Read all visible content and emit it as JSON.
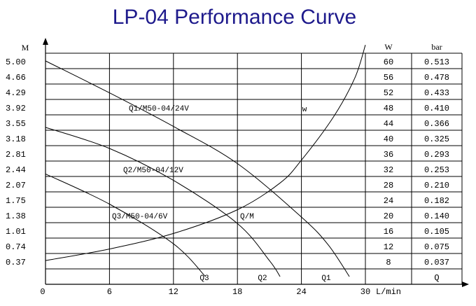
{
  "chart_data": {
    "type": "line",
    "title": "LP-04 Performance Curve",
    "ylabel": "M",
    "xlabel": "L/min",
    "x_ticks": [
      "0",
      "6",
      "12",
      "18",
      "24",
      "30"
    ],
    "y_ticks": [
      "5.00",
      "4.66",
      "4.29",
      "3.92",
      "3.55",
      "3.18",
      "2.81",
      "2.44",
      "2.07",
      "1.75",
      "1.38",
      "1.01",
      "0.74",
      "0.37"
    ],
    "xlim": [
      0,
      30
    ],
    "ylim": [
      0,
      5.37
    ],
    "grid": true,
    "series": [
      {
        "name": "Q1/M50-04/24V",
        "end_label": "Q1",
        "points": [
          [
            0,
            5.0
          ],
          [
            6,
            4.26
          ],
          [
            12,
            3.48
          ],
          [
            18,
            2.62
          ],
          [
            24,
            1.38
          ],
          [
            26.5,
            0.74
          ],
          [
            28.5,
            0
          ]
        ]
      },
      {
        "name": "Q2/M50-04/12V",
        "end_label": "Q2",
        "points": [
          [
            0,
            3.46
          ],
          [
            6,
            2.97
          ],
          [
            12,
            2.23
          ],
          [
            18,
            1.23
          ],
          [
            21,
            0.37
          ],
          [
            22,
            0
          ]
        ]
      },
      {
        "name": "Q3/M50-04/6V",
        "end_label": "Q3",
        "points": [
          [
            0,
            2.38
          ],
          [
            6,
            1.68
          ],
          [
            12,
            0.76
          ],
          [
            15,
            0
          ]
        ]
      },
      {
        "name": "Q/M",
        "marker": "w",
        "points": [
          [
            0,
            0.37
          ],
          [
            6,
            0.64
          ],
          [
            12,
            1.0
          ],
          [
            18,
            1.55
          ],
          [
            22,
            2.17
          ],
          [
            24,
            2.7
          ],
          [
            27,
            3.7
          ],
          [
            29,
            4.6
          ],
          [
            30,
            5.37
          ]
        ]
      }
    ],
    "table": {
      "headers": [
        "W",
        "bar"
      ],
      "rows": [
        [
          "60",
          "0.513"
        ],
        [
          "56",
          "0.478"
        ],
        [
          "52",
          "0.433"
        ],
        [
          "48",
          "0.410"
        ],
        [
          "44",
          "0.366"
        ],
        [
          "40",
          "0.325"
        ],
        [
          "36",
          "0.293"
        ],
        [
          "32",
          "0.253"
        ],
        [
          "28",
          "0.210"
        ],
        [
          "24",
          "0.182"
        ],
        [
          "20",
          "0.140"
        ],
        [
          "16",
          "0.105"
        ],
        [
          "12",
          "0.075"
        ],
        [
          "8",
          "0.037"
        ]
      ],
      "footer": "Q"
    }
  }
}
